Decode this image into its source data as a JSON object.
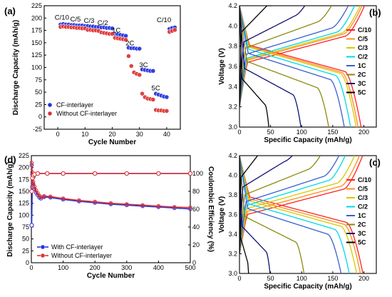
{
  "chart_data": [
    {
      "panel": "(a)",
      "type": "scatter",
      "xlabel": "Cycle Number",
      "ylabel": "Discharge Capacity (mAh/g)",
      "xlim": [
        -5,
        45
      ],
      "ylim": [
        -25,
        225
      ],
      "xticks": [
        0,
        10,
        20,
        30,
        40
      ],
      "yticks": [
        -25,
        0,
        25,
        50,
        75,
        100,
        125,
        150,
        175,
        200,
        225
      ],
      "legend_position": "bottom-left",
      "rate_labels": [
        {
          "text": "C/10",
          "x": 1.5,
          "y": 197
        },
        {
          "text": "C/5",
          "x": 6.5,
          "y": 193
        },
        {
          "text": "C/3",
          "x": 11.5,
          "y": 190
        },
        {
          "text": "C/2",
          "x": 16.5,
          "y": 186
        },
        {
          "text": "1C",
          "x": 21.5,
          "y": 171
        },
        {
          "text": "2C",
          "x": 26.5,
          "y": 145
        },
        {
          "text": "3C",
          "x": 31.5,
          "y": 101
        },
        {
          "text": "5C",
          "x": 36,
          "y": 54
        },
        {
          "text": "C/10",
          "x": 39,
          "y": 192
        }
      ],
      "series": [
        {
          "name": "CF-interlayer",
          "color": "#2233dd",
          "points": [
            [
              1,
              187
            ],
            [
              2,
              188
            ],
            [
              3,
              187
            ],
            [
              4,
              187
            ],
            [
              5,
              186
            ],
            [
              6,
              186
            ],
            [
              7,
              185
            ],
            [
              8,
              185
            ],
            [
              9,
              185
            ],
            [
              10,
              184
            ],
            [
              11,
              184
            ],
            [
              12,
              183
            ],
            [
              13,
              183
            ],
            [
              14,
              182
            ],
            [
              15,
              182
            ],
            [
              16,
              181
            ],
            [
              17,
              181
            ],
            [
              18,
              180
            ],
            [
              19,
              180
            ],
            [
              20,
              179
            ],
            [
              21,
              168
            ],
            [
              22,
              167
            ],
            [
              23,
              166
            ],
            [
              24,
              165
            ],
            [
              25,
              164
            ],
            [
              26,
              140
            ],
            [
              27,
              139
            ],
            [
              28,
              139
            ],
            [
              29,
              138
            ],
            [
              30,
              138
            ],
            [
              31,
              96
            ],
            [
              32,
              95
            ],
            [
              33,
              94
            ],
            [
              34,
              93
            ],
            [
              35,
              93
            ],
            [
              36,
              47
            ],
            [
              37,
              45
            ],
            [
              38,
              43
            ],
            [
              39,
              41
            ],
            [
              40,
              40
            ],
            [
              41,
              178
            ],
            [
              42,
              180
            ],
            [
              43,
              181
            ]
          ]
        },
        {
          "name": "Without CF-interlayer",
          "color": "#dd3333",
          "points": [
            [
              1,
              182
            ],
            [
              2,
              183
            ],
            [
              3,
              182
            ],
            [
              4,
              182
            ],
            [
              5,
              181
            ],
            [
              6,
              181
            ],
            [
              7,
              180
            ],
            [
              8,
              180
            ],
            [
              9,
              179
            ],
            [
              10,
              179
            ],
            [
              11,
              176
            ],
            [
              12,
              176
            ],
            [
              13,
              175
            ],
            [
              14,
              175
            ],
            [
              15,
              174
            ],
            [
              16,
              171
            ],
            [
              17,
              170
            ],
            [
              18,
              169
            ],
            [
              19,
              168
            ],
            [
              20,
              168
            ],
            [
              21,
              160
            ],
            [
              22,
              159
            ],
            [
              23,
              158
            ],
            [
              24,
              157
            ],
            [
              25,
              156
            ],
            [
              26,
              123
            ],
            [
              27,
              103
            ],
            [
              28,
              90
            ],
            [
              29,
              87
            ],
            [
              30,
              85
            ],
            [
              31,
              47
            ],
            [
              32,
              40
            ],
            [
              33,
              37
            ],
            [
              34,
              36
            ],
            [
              35,
              35
            ],
            [
              36,
              14
            ],
            [
              37,
              13
            ],
            [
              38,
              13
            ],
            [
              39,
              12
            ],
            [
              40,
              12
            ],
            [
              41,
              172
            ],
            [
              42,
              174
            ],
            [
              43,
              176
            ]
          ]
        }
      ]
    },
    {
      "panel": "(b)",
      "type": "line",
      "xlabel": "Specific Capacity (mAh/g)",
      "ylabel": "Voltage (V)",
      "xlim": [
        0,
        220
      ],
      "ylim": [
        3.0,
        4.2
      ],
      "xticks": [
        0,
        50,
        100,
        150,
        200
      ],
      "yticks": [
        3.0,
        3.2,
        3.4,
        3.6,
        3.8,
        4.0,
        4.2
      ],
      "legend_position": "right",
      "series": [
        {
          "name": "C/10",
          "color": "#ff2020",
          "discharge_end": 197,
          "discharge_plateau": 3.63,
          "charge_end": 201,
          "charge_plateau": 3.76
        },
        {
          "name": "C/5",
          "color": "#ff8c1a",
          "discharge_end": 192,
          "discharge_plateau": 3.62,
          "charge_end": 197,
          "charge_plateau": 3.78
        },
        {
          "name": "C/3",
          "color": "#d8c800",
          "discharge_end": 189,
          "discharge_plateau": 3.61,
          "charge_end": 194,
          "charge_plateau": 3.79
        },
        {
          "name": "C/2",
          "color": "#00d8e8",
          "discharge_end": 180,
          "discharge_plateau": 3.59,
          "charge_end": 185,
          "charge_plateau": 3.8
        },
        {
          "name": "1C",
          "color": "#3a5fcd",
          "discharge_end": 170,
          "discharge_plateau": 3.55,
          "charge_end": 175,
          "charge_plateau": 3.84
        },
        {
          "name": "2C",
          "color": "#8a8a10",
          "discharge_end": 145,
          "discharge_plateau": 3.47,
          "charge_end": 148,
          "charge_plateau": 3.9
        },
        {
          "name": "3C",
          "color": "#101070",
          "discharge_end": 100,
          "discharge_plateau": 3.4,
          "charge_end": 105,
          "charge_plateau": 3.96
        },
        {
          "name": "5C",
          "color": "#000000",
          "discharge_end": 48,
          "discharge_plateau": 3.3,
          "charge_end": 52,
          "charge_plateau": 4.06
        }
      ]
    },
    {
      "panel": "(d)",
      "type": "line",
      "xlabel": "Cycle Number",
      "ylabel": "Discharge Capacity (mAh/g)",
      "y2label": "Coulombic Efficiency (%)",
      "xlim": [
        0,
        500
      ],
      "ylim": [
        0,
        225
      ],
      "y2lim": [
        0,
        120
      ],
      "xticks": [
        0,
        100,
        200,
        300,
        400,
        500
      ],
      "yticks": [
        0,
        25,
        50,
        75,
        100,
        125,
        150,
        175,
        200,
        225
      ],
      "y2ticks": [
        0,
        20,
        40,
        60,
        80,
        100
      ],
      "legend_position": "bottom-left",
      "series": [
        {
          "name": "With CF-interlayer",
          "color": "#2233dd",
          "capacity": [
            [
              1,
              205
            ],
            [
              3,
              185
            ],
            [
              6,
              165
            ],
            [
              10,
              155
            ],
            [
              15,
              147
            ],
            [
              20,
              142
            ],
            [
              25,
              137
            ],
            [
              30,
              135
            ],
            [
              40,
              138
            ],
            [
              60,
              137
            ],
            [
              100,
              133
            ],
            [
              150,
              129
            ],
            [
              200,
              126
            ],
            [
              250,
              123
            ],
            [
              300,
              121
            ],
            [
              350,
              119
            ],
            [
              400,
              117
            ],
            [
              450,
              115
            ],
            [
              500,
              113
            ]
          ],
          "efficiency": [
            [
              1,
              42
            ],
            [
              3,
              85
            ],
            [
              6,
              96
            ],
            [
              10,
              99
            ],
            [
              20,
              100
            ],
            [
              50,
              100
            ],
            [
              100,
              100
            ],
            [
              200,
              100
            ],
            [
              300,
              100
            ],
            [
              400,
              100
            ],
            [
              500,
              100
            ]
          ]
        },
        {
          "name": "Without CF-interlayer",
          "color": "#dd3333",
          "capacity": [
            [
              1,
              210
            ],
            [
              3,
              190
            ],
            [
              6,
              170
            ],
            [
              10,
              160
            ],
            [
              15,
              152
            ],
            [
              20,
              146
            ],
            [
              25,
              141
            ],
            [
              30,
              138
            ],
            [
              40,
              140
            ],
            [
              60,
              139
            ],
            [
              100,
              135
            ],
            [
              150,
              131
            ],
            [
              200,
              128
            ],
            [
              250,
              125
            ],
            [
              300,
              123
            ],
            [
              350,
              121
            ],
            [
              400,
              119
            ],
            [
              450,
              117
            ],
            [
              500,
              116
            ]
          ],
          "efficiency": [
            [
              1,
              80
            ],
            [
              3,
              95
            ],
            [
              6,
              98
            ],
            [
              10,
              99
            ],
            [
              20,
              100
            ],
            [
              50,
              100
            ],
            [
              100,
              100
            ],
            [
              200,
              100
            ],
            [
              300,
              100
            ],
            [
              400,
              100
            ],
            [
              500,
              100
            ]
          ]
        }
      ]
    },
    {
      "panel": "(c)",
      "type": "line",
      "xlabel": "Specific Capacity (mAh/g)",
      "ylabel": "Voltage (V)",
      "xlim": [
        0,
        220
      ],
      "ylim": [
        3.0,
        4.2
      ],
      "xticks": [
        0,
        50,
        100,
        150,
        200
      ],
      "yticks": [
        3.0,
        3.2,
        3.4,
        3.6,
        3.8,
        4.0,
        4.2
      ],
      "legend_position": "right",
      "series": [
        {
          "name": "C/10",
          "color": "#ff2020",
          "discharge_end": 200,
          "discharge_plateau": 3.6,
          "charge_end": 198,
          "charge_plateau": 3.72
        },
        {
          "name": "C/5",
          "color": "#ff8c1a",
          "discharge_end": 196,
          "discharge_plateau": 3.58,
          "charge_end": 193,
          "charge_plateau": 3.75
        },
        {
          "name": "C/3",
          "color": "#d8c800",
          "discharge_end": 190,
          "discharge_plateau": 3.56,
          "charge_end": 185,
          "charge_plateau": 3.78
        },
        {
          "name": "C/2",
          "color": "#00d8e8",
          "discharge_end": 178,
          "discharge_plateau": 3.53,
          "charge_end": 170,
          "charge_plateau": 3.81
        },
        {
          "name": "1C",
          "color": "#3a5fcd",
          "discharge_end": 165,
          "discharge_plateau": 3.48,
          "charge_end": 160,
          "charge_plateau": 3.85
        },
        {
          "name": "2C",
          "color": "#8a8a10",
          "discharge_end": 105,
          "discharge_plateau": 3.4,
          "charge_end": 130,
          "charge_plateau": 3.92
        },
        {
          "name": "3C",
          "color": "#101070",
          "discharge_end": 50,
          "discharge_plateau": 3.3,
          "charge_end": 85,
          "charge_plateau": 4.0
        },
        {
          "name": "5C",
          "color": "#000000",
          "discharge_end": 15,
          "discharge_plateau": 3.2,
          "charge_end": 40,
          "charge_plateau": 4.1
        }
      ]
    }
  ]
}
